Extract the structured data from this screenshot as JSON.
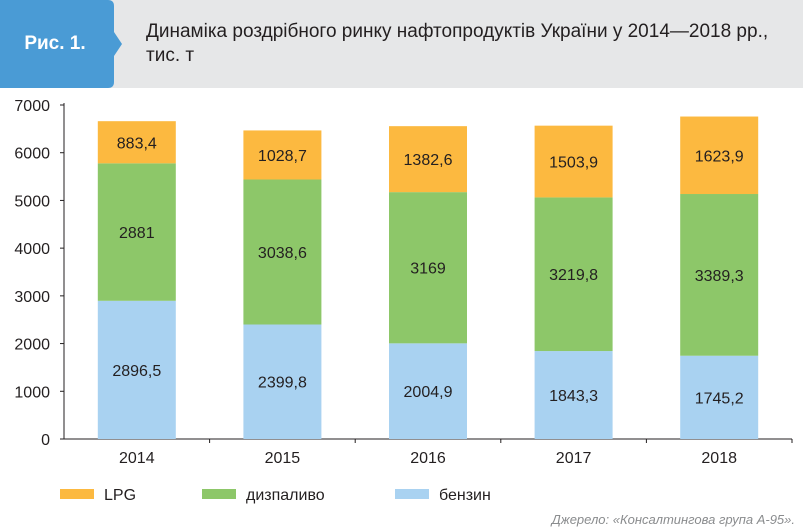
{
  "figure": {
    "label": "Рис. 1.",
    "title": "Динаміка роздрібного ринку нафтопродуктів України у 2014—2018 рр., тис. т"
  },
  "source": "Джерело: «Консалтингова група А-95».",
  "colors": {
    "header_bg": "#e6e7e8",
    "badge": "#4a9bd5",
    "lpg": "#fcb940",
    "diesel": "#8dc769",
    "petrol": "#a9d2f1",
    "text": "#231f20"
  },
  "chart_data": {
    "type": "bar",
    "stacked": true,
    "categories": [
      "2014",
      "2015",
      "2016",
      "2017",
      "2018"
    ],
    "series": [
      {
        "name": "бензин",
        "values": [
          2896.5,
          2399.8,
          2004.9,
          1843.3,
          1745.2
        ],
        "labels": [
          "2896,5",
          "2399,8",
          "2004,9",
          "1843,3",
          "1745,2"
        ],
        "color": "#a9d2f1"
      },
      {
        "name": "дизпаливо",
        "values": [
          2881,
          3038.6,
          3169,
          3219.8,
          3389.3
        ],
        "labels": [
          "2881",
          "3038,6",
          "3169",
          "3219,8",
          "3389,3"
        ],
        "color": "#8dc769"
      },
      {
        "name": "LPG",
        "values": [
          883.4,
          1028.7,
          1382.6,
          1503.9,
          1623.9
        ],
        "labels": [
          "883,4",
          "1028,7",
          "1382,6",
          "1503,9",
          "1623,9"
        ],
        "color": "#fcb940"
      }
    ],
    "legend_order": [
      "LPG",
      "дизпаливо",
      "бензин"
    ],
    "ylim": [
      0,
      7000
    ],
    "yticks": [
      "0",
      "1000",
      "2000",
      "3000",
      "4000",
      "5000",
      "6000",
      "7000"
    ],
    "grid": false,
    "legend_position": "bottom-left"
  }
}
